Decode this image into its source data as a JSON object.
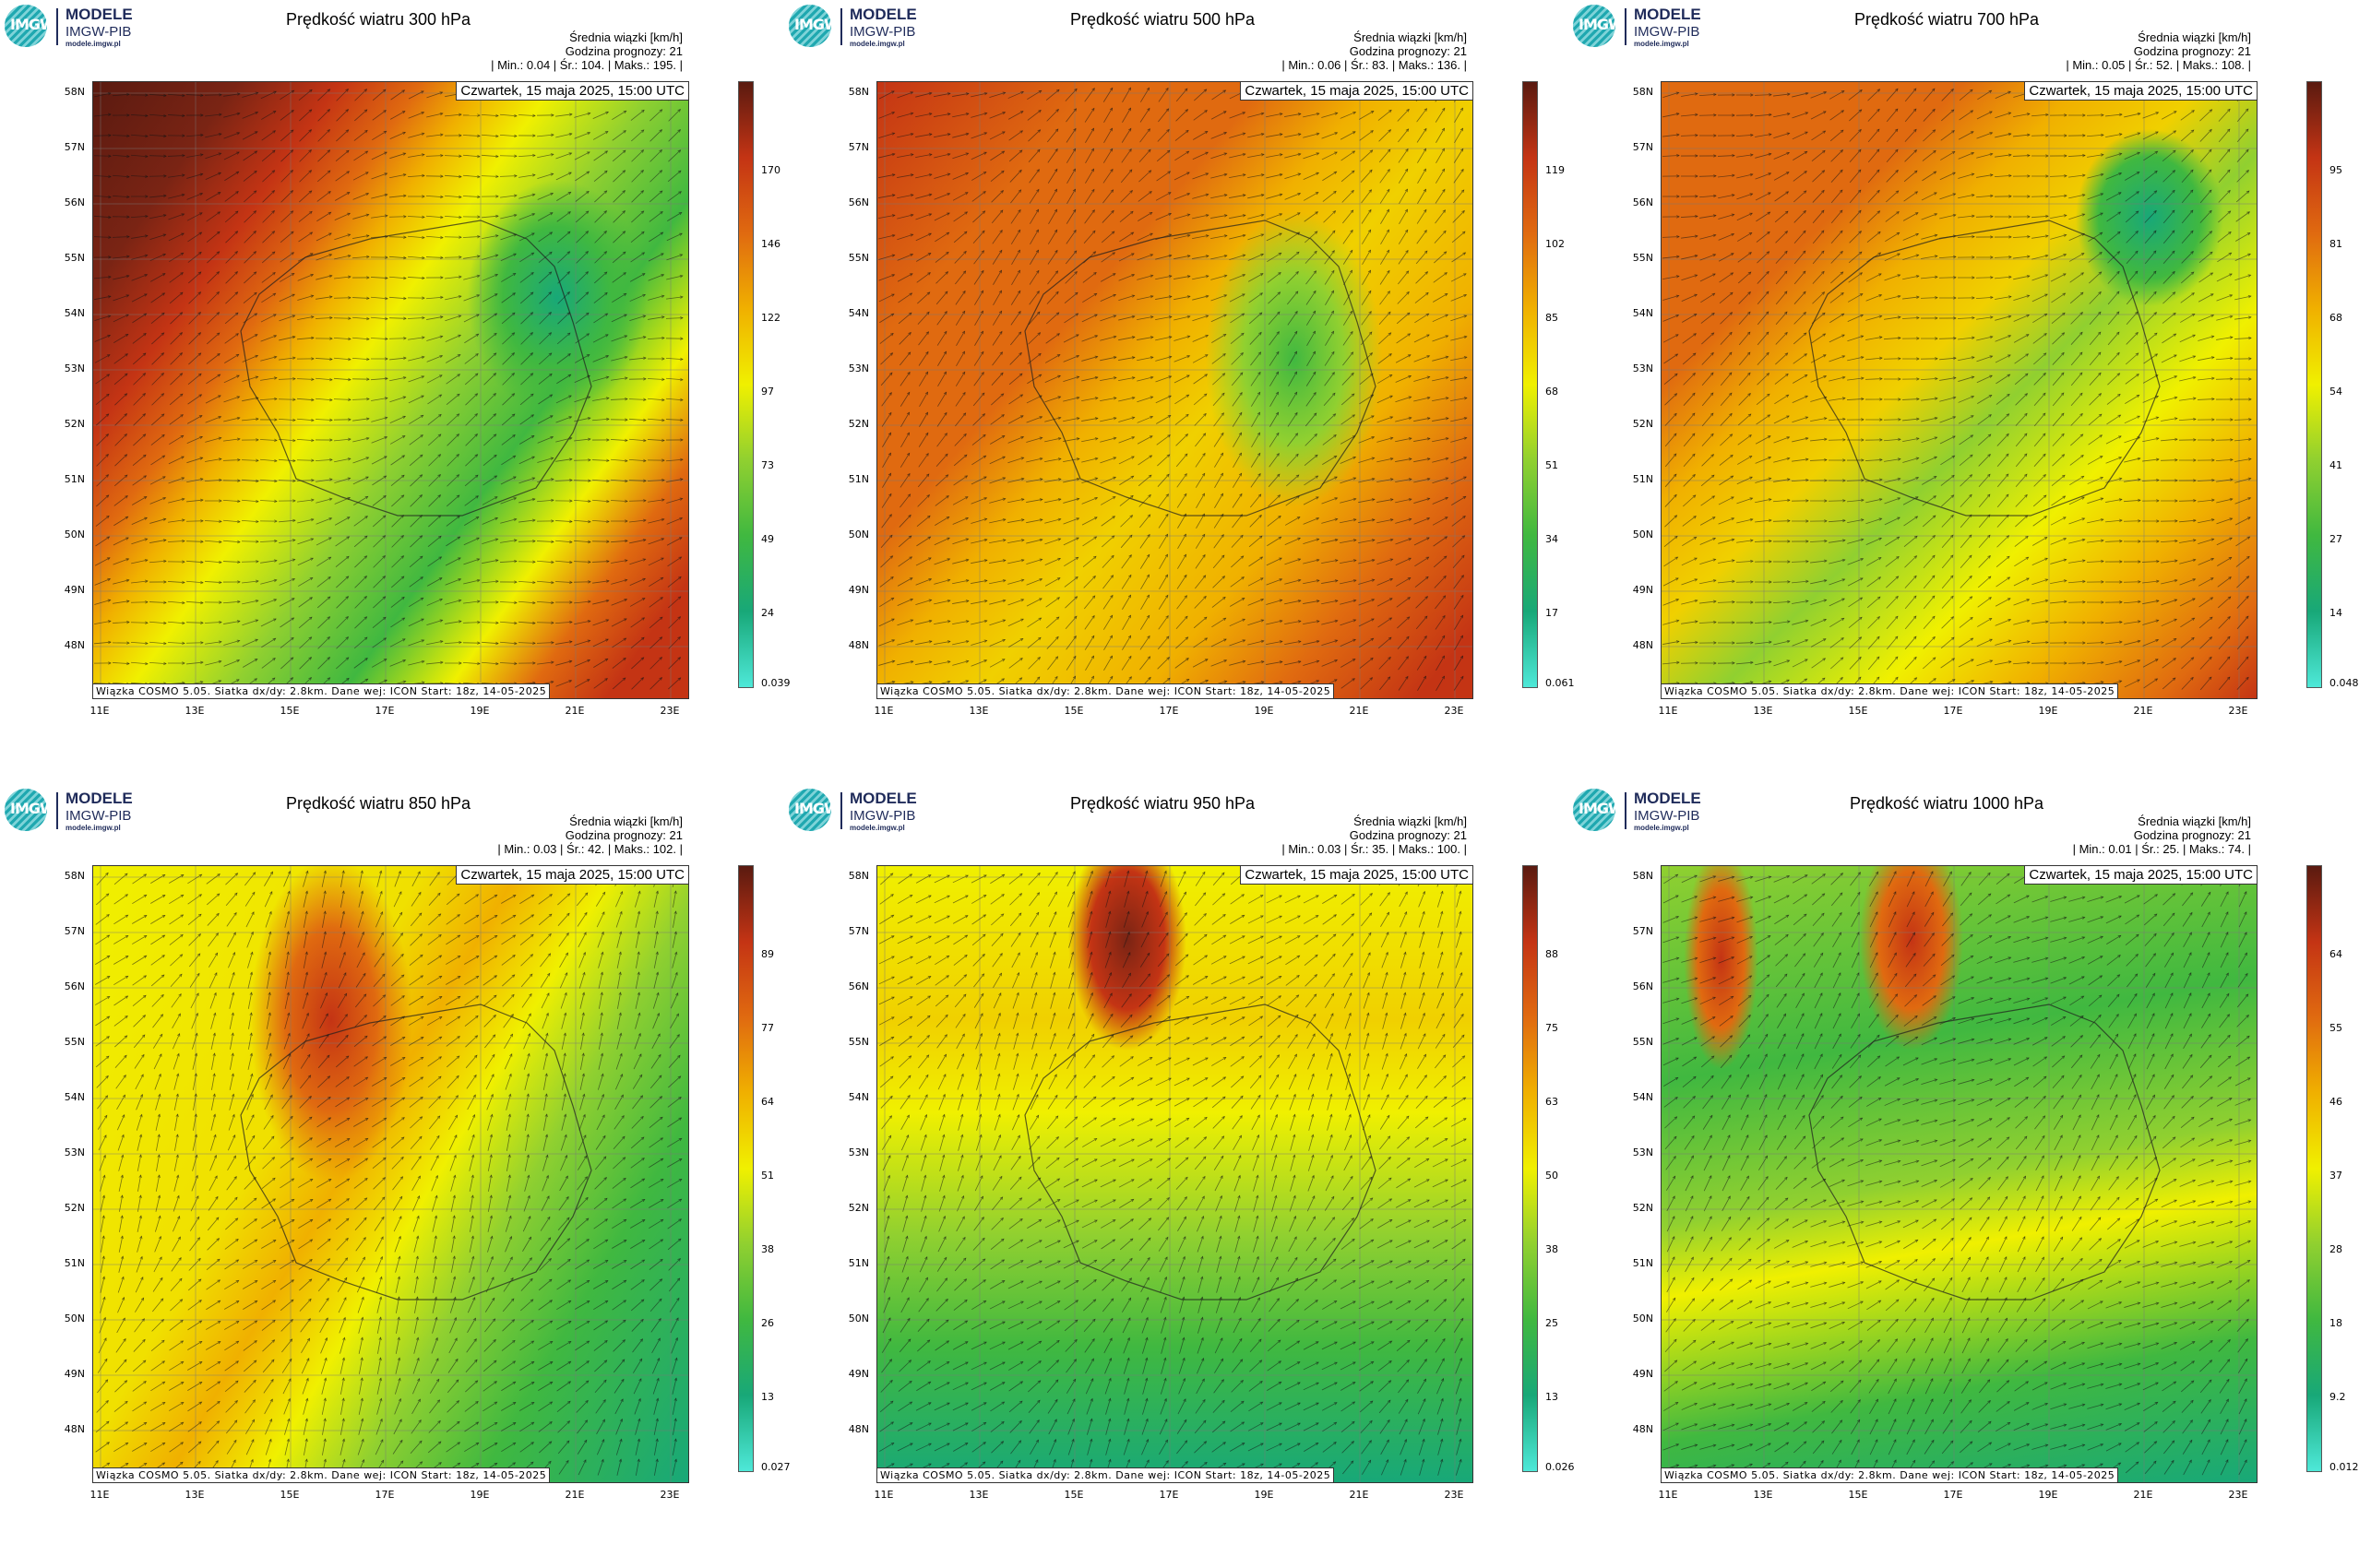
{
  "logo": {
    "mark": "IMGW",
    "name": "MODELE",
    "org": "IMGW-PIB",
    "url": "modele.imgw.pl"
  },
  "shared": {
    "subtitle": "Średnia wiązki [km/h]",
    "forecast_hour": "Godzina prognozy: 21",
    "date": "Czwartek, 15 maja 2025, 15:00 UTC",
    "footer": "Wiązka COSMO 5.05. Siatka dx/dy: 2.8km. Dane wej: ICON Start: 18z, 14-05-2025",
    "lat_labels": [
      "58N",
      "57N",
      "56N",
      "55N",
      "54N",
      "53N",
      "52N",
      "51N",
      "50N",
      "49N",
      "48N"
    ],
    "lon_labels": [
      "11E",
      "13E",
      "15E",
      "17E",
      "19E",
      "21E",
      "23E"
    ]
  },
  "colors": {
    "scale": [
      "#4ee8d8",
      "#18a878",
      "#40b840",
      "#90d030",
      "#f0f000",
      "#f0b000",
      "#e06a10",
      "#c43414",
      "#5a1a10"
    ]
  },
  "panels": [
    {
      "title": "Prędkość wiatru 300 hPa",
      "stats": "| Min.:   0.04 | Śr.:   104. | Maks.:   195. |",
      "ticks": [
        "170",
        "146",
        "122",
        "97",
        "73",
        "49",
        "24",
        "0.039"
      ]
    },
    {
      "title": "Prędkość wiatru 500 hPa",
      "stats": "| Min.:   0.06 | Śr.:   83. | Maks.:   136. |",
      "ticks": [
        "119",
        "102",
        "85",
        "68",
        "51",
        "34",
        "17",
        "0.061"
      ]
    },
    {
      "title": "Prędkość wiatru 700 hPa",
      "stats": "| Min.:   0.05 | Śr.:   52. | Maks.:   108. |",
      "ticks": [
        "95",
        "81",
        "68",
        "54",
        "41",
        "27",
        "14",
        "0.048"
      ]
    },
    {
      "title": "Prędkość wiatru 850 hPa",
      "stats": "| Min.:   0.03 | Śr.:   42. | Maks.:   102. |",
      "ticks": [
        "89",
        "77",
        "64",
        "51",
        "38",
        "26",
        "13",
        "0.027"
      ]
    },
    {
      "title": "Prędkość wiatru 950 hPa",
      "stats": "| Min.:   0.03 | Śr.:   35. | Maks.:   100. |",
      "ticks": [
        "88",
        "75",
        "63",
        "50",
        "38",
        "25",
        "13",
        "0.026"
      ]
    },
    {
      "title": "Prędkość wiatru 1000 hPa",
      "stats": "| Min.:   0.01 | Śr.:   25. | Maks.:   74. |",
      "ticks": [
        "64",
        "55",
        "46",
        "37",
        "28",
        "18",
        "9.2",
        "0.012"
      ]
    }
  ]
}
